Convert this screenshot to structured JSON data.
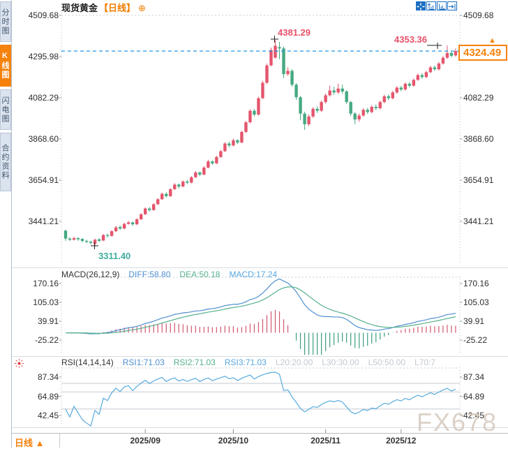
{
  "window": {
    "symbol": "现货黄金",
    "period_tag": "【日线】",
    "expand_icon": "circle-plus-icon"
  },
  "colors": {
    "up": "#e4566d",
    "down": "#45a981",
    "hist_up": "#d2566e",
    "hist_down": "#3d9c80",
    "diff_line": "#4f8fd0",
    "dea_line": "#55b08a",
    "macd_value": "#56a6dc",
    "rsi_line": "#56aadc",
    "price_line": "#2196e8",
    "accent": "#f5820d",
    "annotation_high": "#e8506a",
    "annotation_low": "#3fae9e",
    "grid": "#c6cad1",
    "label_grey": "#c3c9d3"
  },
  "sidebar": {
    "items": [
      {
        "label": "分时图",
        "active": false
      },
      {
        "label": "K线图",
        "active": true
      },
      {
        "label": "闪电图",
        "active": false
      },
      {
        "label": "合约资料",
        "active": false
      }
    ]
  },
  "toolbar": {
    "icons": [
      "crosshair-tool-icon",
      "fit-vertical-icon",
      "fit-horizontal-icon",
      "jump-to-latest-icon"
    ]
  },
  "main_chart": {
    "price_ticks": [
      4509.68,
      4295.98,
      4082.29,
      3868.6,
      3654.91,
      3441.21
    ],
    "annotations": {
      "peak_high": "4381.29",
      "recent_high": "4353.36",
      "period_low": "3311.40"
    },
    "last_price": {
      "label": "4324.49",
      "value": 4324.49,
      "direction_icon": "up-triangle-icon"
    }
  },
  "macd_panel": {
    "title": "MACD(26,12,9)",
    "diff": "DIFF:58.80",
    "dea": "DEA:50.18",
    "macd": "MACD:17.24",
    "ticks": [
      170.16,
      105.03,
      39.91,
      -25.22
    ]
  },
  "rsi_panel": {
    "title": "RSI(14,14,14)",
    "rsi1": "RSI1:71.03",
    "rsi2": "RSI2:71.03",
    "rsi3": "RSI3:71.03",
    "levels": [
      "L20:20.00",
      "L30:30.00",
      "L50:50.00",
      "L70:7"
    ],
    "ticks": [
      87.34,
      64.89,
      42.45
    ],
    "gridline_values": [
      80,
      70,
      50,
      30
    ]
  },
  "bottom_bar": {
    "period_tab": "日线 ▲"
  },
  "watermark": "FX678",
  "chart_data": {
    "type": "candlestick",
    "symbol": "现货黄金",
    "period": "日线",
    "price_axis_ticks": [
      4509.68,
      4295.98,
      4082.29,
      3868.6,
      3654.91,
      3441.21
    ],
    "high": 4381.29,
    "low": 3311.4,
    "recent_high": 4353.36,
    "last": 4324.49,
    "months": [
      {
        "label": "2025/09",
        "index": 19
      },
      {
        "label": "2025/10",
        "index": 40
      },
      {
        "label": "2025/11",
        "index": 62
      },
      {
        "label": "2025/12",
        "index": 80
      }
    ],
    "indicators": {
      "macd": {
        "params": [
          26,
          12,
          9
        ],
        "diff": 58.8,
        "dea": 50.18,
        "macd": 17.24,
        "axis": [
          170.16,
          105.03,
          39.91,
          -25.22
        ]
      },
      "rsi": {
        "params": [
          14,
          14,
          14
        ],
        "rsi1": 71.03,
        "rsi2": 71.03,
        "rsi3": 71.03,
        "axis": [
          87.34,
          64.89,
          42.45
        ],
        "levels": [
          20,
          30,
          50,
          70
        ]
      }
    },
    "candles": [
      [
        3393,
        3398,
        3340,
        3352
      ],
      [
        3352,
        3358,
        3338,
        3346
      ],
      [
        3346,
        3362,
        3342,
        3354
      ],
      [
        3354,
        3360,
        3340,
        3348
      ],
      [
        3350,
        3354,
        3332,
        3340
      ],
      [
        3340,
        3346,
        3328,
        3335
      ],
      [
        3336,
        3340,
        3322,
        3330
      ],
      [
        3324,
        3352,
        3311.4,
        3346
      ],
      [
        3348,
        3354,
        3334,
        3340
      ],
      [
        3342,
        3376,
        3338,
        3370
      ],
      [
        3370,
        3378,
        3358,
        3366
      ],
      [
        3366,
        3396,
        3362,
        3390
      ],
      [
        3390,
        3418,
        3386,
        3410
      ],
      [
        3412,
        3420,
        3396,
        3404
      ],
      [
        3404,
        3434,
        3400,
        3428
      ],
      [
        3428,
        3444,
        3424,
        3436
      ],
      [
        3436,
        3440,
        3418,
        3426
      ],
      [
        3426,
        3458,
        3422,
        3452
      ],
      [
        3452,
        3484,
        3448,
        3478
      ],
      [
        3478,
        3514,
        3474,
        3508
      ],
      [
        3508,
        3516,
        3492,
        3500
      ],
      [
        3500,
        3536,
        3496,
        3530
      ],
      [
        3530,
        3562,
        3526,
        3556
      ],
      [
        3556,
        3590,
        3552,
        3584
      ],
      [
        3584,
        3592,
        3564,
        3572
      ],
      [
        3572,
        3614,
        3568,
        3608
      ],
      [
        3608,
        3640,
        3604,
        3632
      ],
      [
        3632,
        3638,
        3612,
        3622
      ],
      [
        3622,
        3654,
        3618,
        3648
      ],
      [
        3648,
        3656,
        3634,
        3642
      ],
      [
        3642,
        3676,
        3638,
        3670
      ],
      [
        3670,
        3702,
        3666,
        3695
      ],
      [
        3695,
        3700,
        3676,
        3684
      ],
      [
        3684,
        3728,
        3680,
        3720
      ],
      [
        3720,
        3760,
        3716,
        3752
      ],
      [
        3752,
        3758,
        3734,
        3742
      ],
      [
        3742,
        3782,
        3738,
        3775
      ],
      [
        3775,
        3812,
        3771,
        3805
      ],
      [
        3805,
        3852,
        3801,
        3845
      ],
      [
        3845,
        3854,
        3826,
        3835
      ],
      [
        3835,
        3870,
        3830,
        3862
      ],
      [
        3862,
        3868,
        3842,
        3850
      ],
      [
        3850,
        3912,
        3846,
        3905
      ],
      [
        3905,
        3962,
        3900,
        3955
      ],
      [
        3955,
        4022,
        3950,
        4015
      ],
      [
        4015,
        4024,
        3986,
        3995
      ],
      [
        3995,
        4088,
        3990,
        4080
      ],
      [
        4080,
        4170,
        4076,
        4160
      ],
      [
        4160,
        4260,
        4154,
        4250
      ],
      [
        4250,
        4342,
        4246,
        4330
      ],
      [
        4290,
        4381.29,
        4286,
        4352
      ],
      [
        4345,
        4372,
        4282,
        4338
      ],
      [
        4338,
        4348,
        4185,
        4205
      ],
      [
        4205,
        4240,
        4196,
        4222
      ],
      [
        4222,
        4230,
        4140,
        4150
      ],
      [
        4150,
        4158,
        4072,
        4085
      ],
      [
        4085,
        4092,
        3966,
        4000
      ],
      [
        4000,
        4010,
        3916,
        3945
      ],
      [
        3945,
        3996,
        3936,
        3985
      ],
      [
        3985,
        4034,
        3978,
        4025
      ],
      [
        4025,
        4038,
        4004,
        4015
      ],
      [
        4015,
        4068,
        4008,
        4060
      ],
      [
        4060,
        4104,
        4052,
        4095
      ],
      [
        4095,
        4145,
        4088,
        4120
      ],
      [
        4120,
        4140,
        4098,
        4110
      ],
      [
        4110,
        4155,
        4102,
        4130
      ],
      [
        4130,
        4150,
        4104,
        4115
      ],
      [
        4115,
        4122,
        4050,
        4060
      ],
      [
        4060,
        4066,
        3988,
        4000
      ],
      [
        4000,
        4008,
        3945,
        3970
      ],
      [
        3970,
        4000,
        3958,
        3990
      ],
      [
        3990,
        4028,
        3984,
        4020
      ],
      [
        4020,
        4030,
        3998,
        4008
      ],
      [
        4008,
        4044,
        4002,
        4035
      ],
      [
        4035,
        4048,
        4018,
        4028
      ],
      [
        4028,
        4068,
        4022,
        4060
      ],
      [
        4060,
        4098,
        4054,
        4090
      ],
      [
        4090,
        4100,
        4070,
        4080
      ],
      [
        4080,
        4118,
        4074,
        4110
      ],
      [
        4110,
        4142,
        4104,
        4135
      ],
      [
        4135,
        4144,
        4116,
        4125
      ],
      [
        4125,
        4162,
        4120,
        4155
      ],
      [
        4155,
        4164,
        4136,
        4145
      ],
      [
        4145,
        4182,
        4140,
        4175
      ],
      [
        4175,
        4208,
        4170,
        4200
      ],
      [
        4200,
        4210,
        4180,
        4190
      ],
      [
        4190,
        4222,
        4184,
        4215
      ],
      [
        4215,
        4248,
        4210,
        4240
      ],
      [
        4240,
        4250,
        4222,
        4230
      ],
      [
        4230,
        4268,
        4224,
        4260
      ],
      [
        4260,
        4298,
        4254,
        4290
      ],
      [
        4290,
        4353.36,
        4284,
        4315
      ],
      [
        4315,
        4322,
        4292,
        4300
      ],
      [
        4302,
        4338,
        4296,
        4324.49
      ]
    ]
  }
}
